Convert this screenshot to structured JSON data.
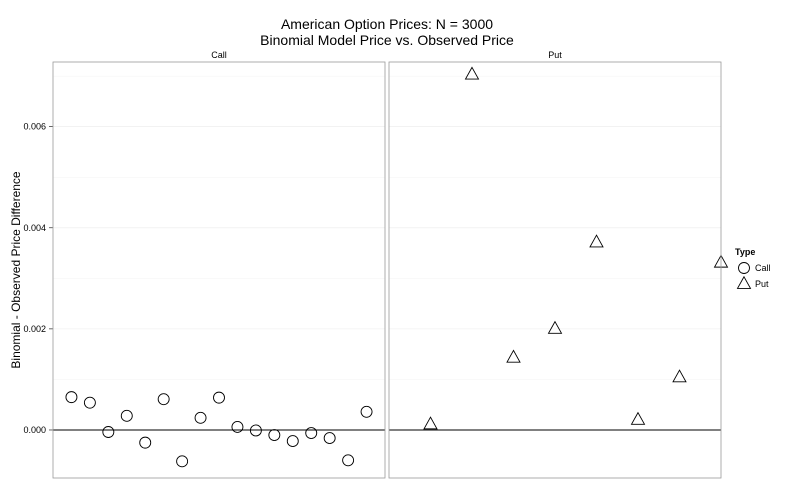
{
  "chart_data": {
    "type": "scatter",
    "title": "American Option Prices: N = 3000",
    "subtitle": "Binomial Model Price vs. Observed Price",
    "xlabel": "",
    "ylabel": "Binomial - Observed Price Difference",
    "ylim": [
      -0.00095,
      0.00728
    ],
    "yticks": [
      0.0,
      0.002,
      0.004,
      0.006
    ],
    "ytick_labels": [
      "0.000",
      "0.002",
      "0.004",
      "0.006"
    ],
    "reference_line_y": 0,
    "grid": true,
    "legend": {
      "title": "Type",
      "position": "right",
      "entries": [
        {
          "label": "Call",
          "shape": "circle"
        },
        {
          "label": "Put",
          "shape": "triangle"
        }
      ]
    },
    "panels": [
      {
        "name": "Call",
        "shape": "circle",
        "xlim": [
          0,
          18
        ],
        "x": [
          1,
          2,
          3,
          4,
          5,
          6,
          7,
          8,
          9,
          10,
          11,
          12,
          13,
          14,
          15,
          16,
          17
        ],
        "y": [
          0.00065,
          0.00054,
          -4e-05,
          0.00028,
          -0.00025,
          0.00061,
          -0.00062,
          0.00024,
          0.00064,
          6e-05,
          -1e-05,
          -0.0001,
          -0.00022,
          -6e-05,
          -0.00016,
          -0.0006,
          0.00036
        ]
      },
      {
        "name": "Put",
        "shape": "triangle",
        "xlim": [
          0,
          8
        ],
        "x": [
          1,
          2,
          3,
          4,
          5,
          6,
          7,
          8
        ],
        "y": [
          0.00011,
          0.00703,
          0.00143,
          0.002,
          0.00371,
          0.0002,
          0.00104,
          0.00331
        ]
      }
    ]
  }
}
